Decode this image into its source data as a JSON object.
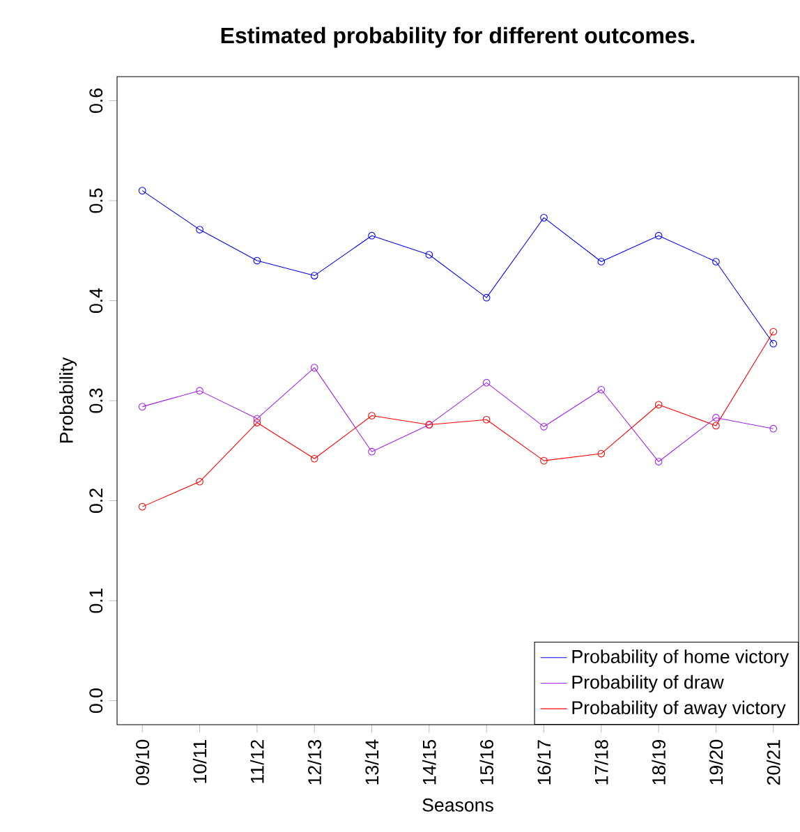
{
  "chart_data": {
    "type": "line",
    "title": "Estimated probability for different outcomes.",
    "xlabel": "Seasons",
    "ylabel": "Probability",
    "categories": [
      "09/10",
      "10/11",
      "11/12",
      "12/13",
      "13/14",
      "14/15",
      "15/16",
      "16/17",
      "17/18",
      "18/19",
      "19/20",
      "20/21"
    ],
    "series": [
      {
        "name": "Probability of home victory",
        "color": "#0000ff",
        "values": [
          0.51,
          0.471,
          0.44,
          0.425,
          0.465,
          0.446,
          0.403,
          0.483,
          0.439,
          0.465,
          0.439,
          0.357
        ]
      },
      {
        "name": "Probability of draw",
        "color": "#a020f0",
        "values": [
          0.294,
          0.31,
          0.282,
          0.333,
          0.249,
          0.276,
          0.318,
          0.274,
          0.311,
          0.239,
          0.283,
          0.272
        ]
      },
      {
        "name": "Probability of away victory",
        "color": "#ff0000",
        "values": [
          0.194,
          0.219,
          0.278,
          0.242,
          0.285,
          0.276,
          0.281,
          0.24,
          0.247,
          0.296,
          0.275,
          0.369
        ]
      }
    ],
    "ylim": [
      -0.024,
      0.624
    ],
    "yticks": [
      {
        "value": 0,
        "label": "0.0"
      },
      0.1,
      0.2,
      0.3,
      0.4,
      0.5,
      0.6
    ],
    "legend": "bottom right",
    "marker": "circle",
    "line_style": "solid",
    "grid": false
  }
}
